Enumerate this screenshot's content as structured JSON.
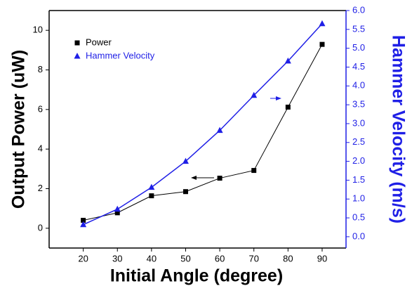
{
  "chart_data": {
    "type": "line",
    "x": [
      20,
      30,
      40,
      50,
      60,
      70,
      80,
      90
    ],
    "series": [
      {
        "name": "Power",
        "color": "#000000",
        "marker": "square",
        "values": [
          0.4,
          0.78,
          1.64,
          1.85,
          2.53,
          2.92,
          6.12,
          9.29
        ]
      },
      {
        "name": "Hammer Velocity",
        "color": "#1f1fe6",
        "marker": "triangle",
        "axis": "y2",
        "values": [
          0.32,
          0.73,
          1.31,
          2.0,
          2.82,
          3.75,
          4.66,
          5.65
        ]
      }
    ],
    "xlabel": "Initial Angle (degree)",
    "ylabel": "Output Power (uW)",
    "y2label": "Hammer Velocity (m/s)",
    "xlim": [
      10,
      97
    ],
    "xticks": [
      20,
      30,
      40,
      50,
      60,
      70,
      80,
      90
    ],
    "ylim": [
      -1,
      11
    ],
    "yticks": [
      0,
      2,
      4,
      6,
      8,
      10
    ],
    "y2lim": [
      -0.3,
      6.0
    ],
    "y2ticks": [
      {
        "value": 0,
        "label": "0.0"
      },
      0.5,
      {
        "value": 1,
        "label": "1.0"
      },
      1.5,
      {
        "value": 2,
        "label": "2.0"
      },
      2.5,
      {
        "value": 3,
        "label": "3.0"
      },
      3.5,
      {
        "value": 4,
        "label": "4.0"
      },
      4.5,
      {
        "value": 5,
        "label": "5.0"
      },
      5.5,
      {
        "value": 6,
        "label": "6.0"
      }
    ],
    "y2color": "#1f1fe6",
    "legend": "upper-left"
  }
}
